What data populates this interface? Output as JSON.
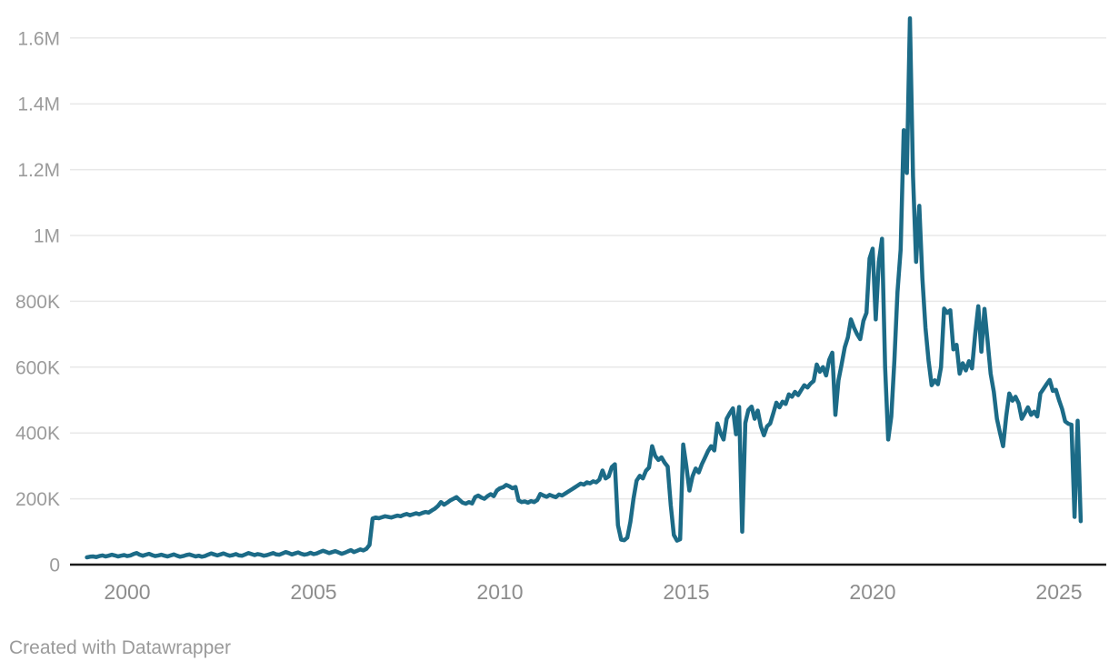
{
  "chart_data": {
    "type": "line",
    "title": "",
    "xlabel": "",
    "ylabel": "",
    "legend": "none",
    "grid": "horizontal",
    "line_color": "#1c6b87",
    "line_width": 4.5,
    "axis_line_color": "#1a1a1a",
    "grid_color": "#e8e8e8",
    "tick_label_color_y": "#9b9b9b",
    "tick_label_color_x": "#8d8d8d",
    "y_unit": "thousands",
    "ylim_thousands": [
      0,
      1700
    ],
    "xlim_years": [
      1998.75,
      2026.3
    ],
    "y_ticks": [
      {
        "label": "0",
        "value": 0
      },
      {
        "label": "200K",
        "value": 200
      },
      {
        "label": "400K",
        "value": 400
      },
      {
        "label": "600K",
        "value": 600
      },
      {
        "label": "800K",
        "value": 800
      },
      {
        "label": "1M",
        "value": 1000
      },
      {
        "label": "1.2M",
        "value": 1200
      },
      {
        "label": "1.4M",
        "value": 1400
      },
      {
        "label": "1.6M",
        "value": 1600
      }
    ],
    "x_ticks": [
      {
        "label": "2000",
        "value": 2000
      },
      {
        "label": "2005",
        "value": 2005
      },
      {
        "label": "2010",
        "value": 2010
      },
      {
        "label": "2015",
        "value": 2015
      },
      {
        "label": "2020",
        "value": 2020
      },
      {
        "label": "2025",
        "value": 2025
      }
    ],
    "x_start_year": 1998.9167,
    "x_step_years": 0.0833333,
    "values_thousands": [
      22,
      24,
      25,
      23,
      26,
      28,
      25,
      27,
      30,
      28,
      25,
      27,
      29,
      26,
      28,
      32,
      35,
      30,
      27,
      30,
      33,
      29,
      26,
      28,
      30,
      27,
      25,
      28,
      31,
      27,
      24,
      26,
      29,
      31,
      28,
      25,
      27,
      24,
      26,
      30,
      34,
      31,
      28,
      31,
      34,
      30,
      27,
      29,
      32,
      28,
      27,
      31,
      35,
      32,
      29,
      32,
      30,
      27,
      29,
      32,
      35,
      31,
      30,
      34,
      38,
      35,
      31,
      34,
      37,
      33,
      30,
      32,
      36,
      32,
      34,
      38,
      42,
      39,
      35,
      38,
      41,
      37,
      33,
      36,
      40,
      44,
      38,
      42,
      46,
      43,
      48,
      60,
      140,
      143,
      141,
      144,
      147,
      145,
      143,
      146,
      149,
      147,
      151,
      154,
      150,
      153,
      156,
      153,
      157,
      160,
      158,
      164,
      170,
      178,
      190,
      182,
      188,
      195,
      200,
      205,
      196,
      188,
      185,
      190,
      186,
      205,
      210,
      204,
      200,
      208,
      214,
      208,
      225,
      232,
      235,
      242,
      238,
      232,
      236,
      195,
      190,
      192,
      188,
      193,
      190,
      196,
      215,
      210,
      206,
      212,
      208,
      205,
      213,
      210,
      216,
      222,
      228,
      234,
      240,
      246,
      243,
      250,
      247,
      253,
      250,
      258,
      286,
      262,
      268,
      296,
      305,
      120,
      76,
      74,
      82,
      130,
      200,
      255,
      270,
      262,
      285,
      295,
      360,
      330,
      318,
      326,
      310,
      298,
      180,
      90,
      73,
      77,
      365,
      300,
      225,
      268,
      292,
      280,
      305,
      325,
      345,
      360,
      347,
      429,
      400,
      380,
      443,
      460,
      475,
      396,
      479,
      100,
      430,
      470,
      480,
      443,
      468,
      420,
      393,
      420,
      429,
      460,
      492,
      478,
      495,
      488,
      517,
      510,
      525,
      515,
      530,
      545,
      538,
      550,
      558,
      608,
      586,
      600,
      575,
      622,
      644,
      455,
      560,
      608,
      660,
      690,
      745,
      720,
      700,
      685,
      740,
      765,
      930,
      960,
      745,
      920,
      990,
      600,
      380,
      450,
      620,
      828,
      957,
      1320,
      1190,
      1660,
      1180,
      920,
      1090,
      870,
      720,
      620,
      545,
      560,
      548,
      600,
      778,
      765,
      773,
      654,
      668,
      580,
      612,
      590,
      618,
      596,
      700,
      785,
      647,
      777,
      680,
      580,
      525,
      443,
      400,
      360,
      450,
      520,
      498,
      510,
      490,
      443,
      460,
      478,
      455,
      465,
      450,
      520,
      534,
      548,
      561,
      528,
      531,
      500,
      473,
      435,
      428,
      425,
      145,
      437,
      132
    ]
  },
  "footer": {
    "credit": "Created with Datawrapper"
  }
}
